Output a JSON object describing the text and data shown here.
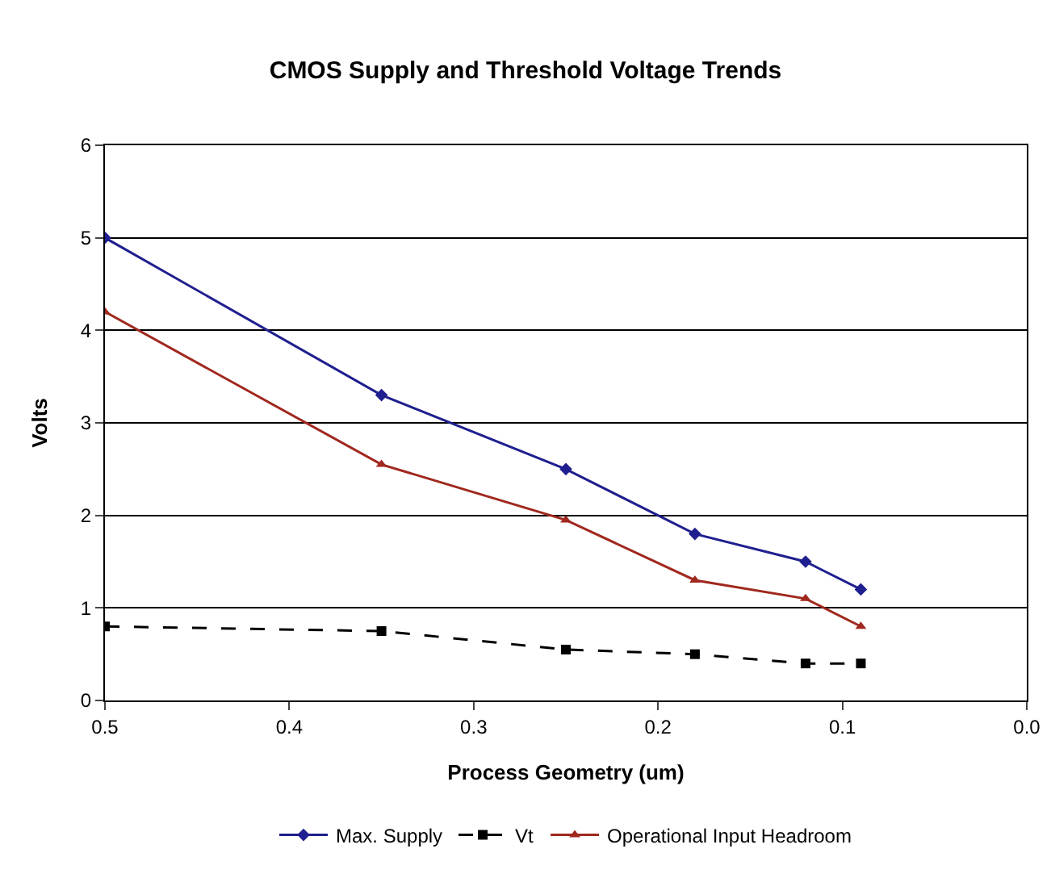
{
  "chart_data": {
    "type": "line",
    "title": "CMOS Supply and Threshold Voltage Trends",
    "xlabel": "Process Geometry (um)",
    "ylabel": "Volts",
    "x": [
      0.5,
      0.35,
      0.25,
      0.18,
      0.12,
      0.09
    ],
    "series": [
      {
        "name": "Max. Supply",
        "color": "#1f1f8f",
        "marker": "diamond",
        "line_style": "solid",
        "values": [
          5,
          3.3,
          2.5,
          1.8,
          1.5,
          1.2
        ]
      },
      {
        "name": "Vt",
        "color": "#000000",
        "marker": "square",
        "line_style": "dashed",
        "values": [
          0.8,
          0.75,
          0.55,
          0.5,
          0.4,
          0.4
        ]
      },
      {
        "name": "Operational Input Headroom",
        "color": "#a0281e",
        "marker": "triangle",
        "line_style": "solid",
        "values": [
          4.2,
          2.55,
          1.95,
          1.3,
          1.1,
          0.8
        ]
      }
    ],
    "xlim": [
      0.5,
      0
    ],
    "xticks": [
      {
        "value": 0.5,
        "label": "0.5"
      },
      {
        "value": 0.4,
        "label": "0.4"
      },
      {
        "value": 0.3,
        "label": "0.3"
      },
      {
        "value": 0.2,
        "label": "0.2"
      },
      {
        "value": 0.1,
        "label": "0.1"
      },
      {
        "value": 0,
        "label": "0.0"
      }
    ],
    "ylim": [
      0,
      6
    ],
    "yticks": [
      0,
      1,
      2,
      3,
      4,
      5,
      6
    ],
    "grid": "y",
    "legend": "bottom"
  }
}
